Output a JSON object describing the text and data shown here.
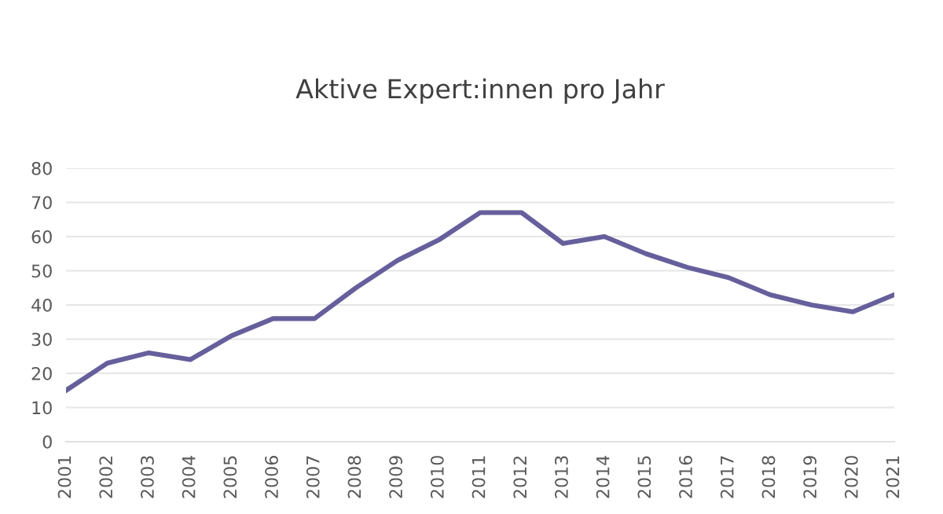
{
  "chart_data": {
    "type": "line",
    "title": "Aktive Expert:innen pro Jahr",
    "categories": [
      "2001",
      "2002",
      "2003",
      "2004",
      "2005",
      "2006",
      "2007",
      "2008",
      "2009",
      "2010",
      "2011",
      "2012",
      "2013",
      "2014",
      "2015",
      "2016",
      "2017",
      "2018",
      "2019",
      "2020",
      "2021"
    ],
    "series": [
      {
        "color": "#665f9c",
        "values": [
          15,
          23,
          26,
          24,
          31,
          36,
          36,
          45,
          53,
          59,
          67,
          67,
          58,
          60,
          55,
          51,
          48,
          43,
          40,
          38,
          43
        ]
      }
    ],
    "ylim": [
      0,
      80
    ],
    "yticks": [
      0,
      10,
      20,
      30,
      40,
      50,
      60,
      70,
      80
    ],
    "grid": "y",
    "legend": false,
    "marker": "none",
    "line_style": "solid"
  }
}
